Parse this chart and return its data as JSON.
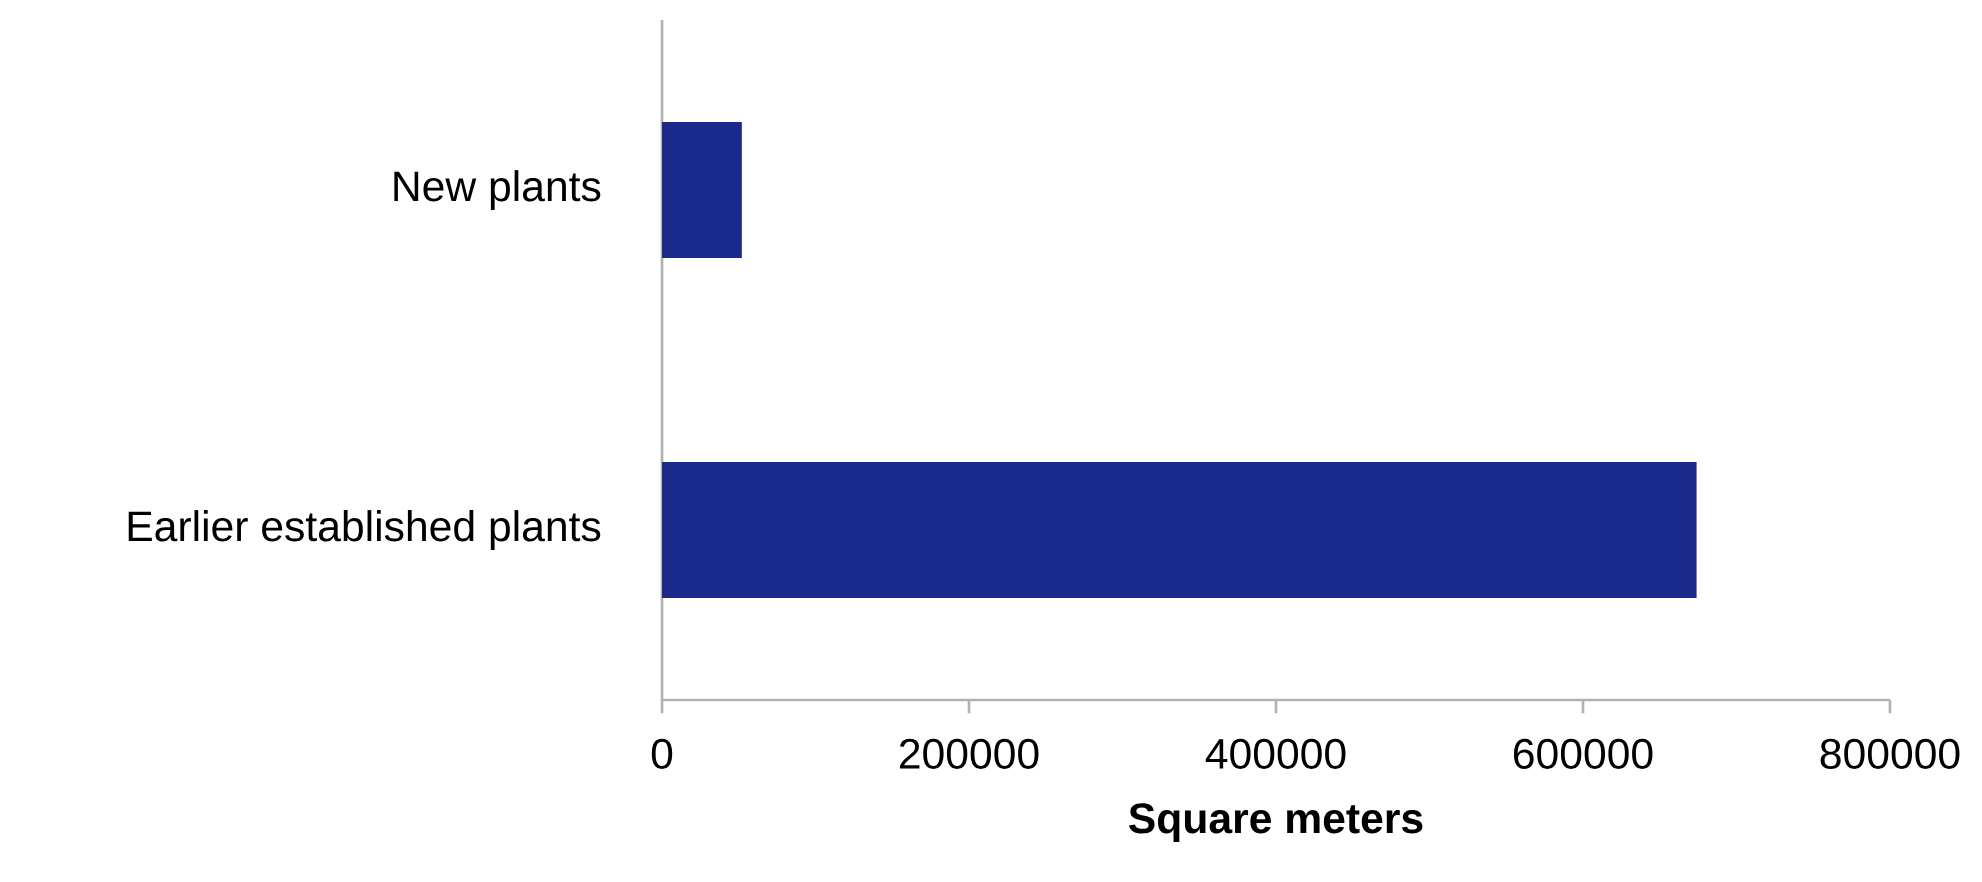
{
  "chart_data": {
    "type": "bar",
    "orientation": "horizontal",
    "categories": [
      "New plants",
      "Earlier established plants"
    ],
    "values": [
      52000,
      674000
    ],
    "color": "#1a2a8c",
    "xlabel": "Square meters",
    "xlim": [
      0,
      800000
    ],
    "xticks": [
      0,
      200000,
      400000,
      600000,
      800000
    ],
    "grid": false
  }
}
